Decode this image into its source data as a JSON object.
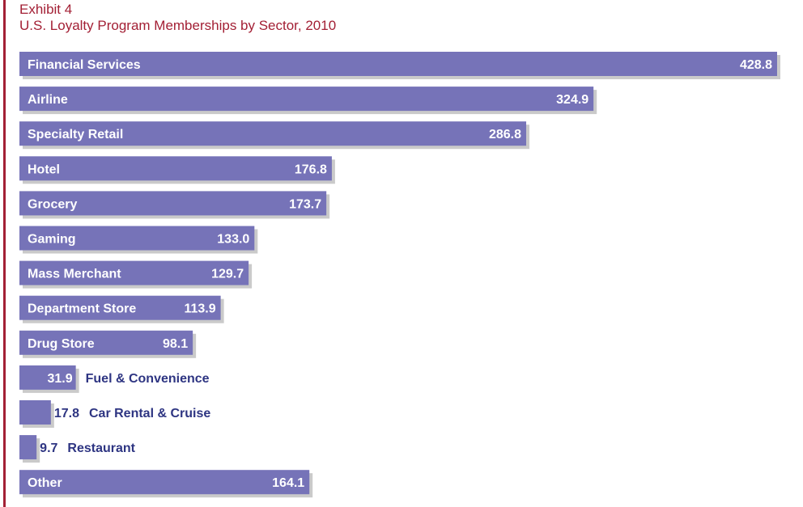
{
  "header": {
    "exhibit": "Exhibit 4",
    "title": "U.S. Loyalty Program Memberships by Sector, 2010"
  },
  "colors": {
    "accent": "#a32035",
    "bar": "#7673b8",
    "shadow": "#9e9e9e",
    "label_inside": "#ffffff",
    "label_outside": "#2e3582"
  },
  "chart_data": {
    "type": "bar",
    "orientation": "horizontal",
    "title": "U.S. Loyalty Program Memberships by Sector, 2010",
    "xlabel": "",
    "ylabel": "",
    "grid": false,
    "legend": "none",
    "categories": [
      "Financial Services",
      "Airline",
      "Specialty Retail",
      "Hotel",
      "Grocery",
      "Gaming",
      "Mass Merchant",
      "Department Store",
      "Drug Store",
      "Fuel & Convenience",
      "Car Rental & Cruise",
      "Restaurant",
      "Other"
    ],
    "values": [
      428.8,
      324.9,
      286.8,
      176.8,
      173.7,
      133.0,
      129.7,
      113.9,
      98.1,
      31.9,
      17.8,
      9.7,
      164.1
    ],
    "value_labels": [
      "428.8",
      "324.9",
      "286.8",
      "176.8",
      "173.7",
      "133.0",
      "129.7",
      "113.9",
      "98.1",
      "31.9",
      "17.8",
      "9.7",
      "164.1"
    ],
    "xlim": [
      0,
      428.8
    ]
  }
}
